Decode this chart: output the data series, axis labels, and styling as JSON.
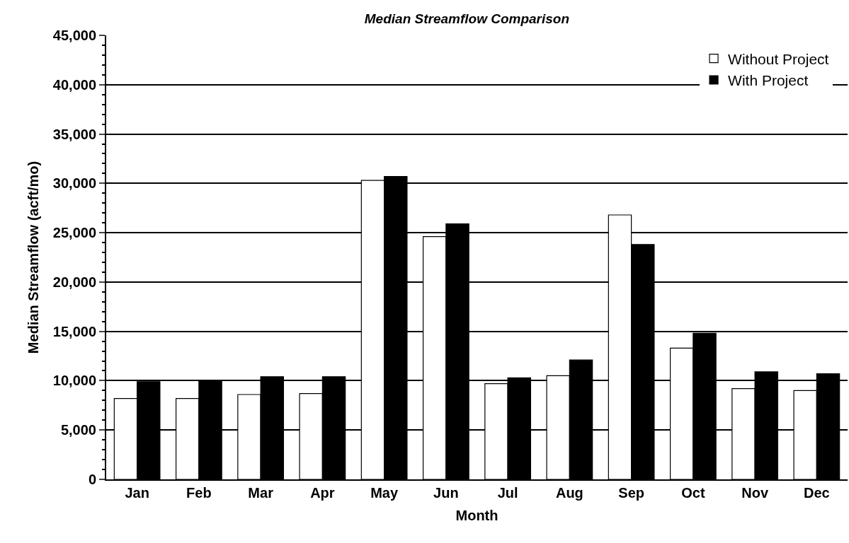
{
  "chart_data": {
    "type": "bar",
    "title": "Median Streamflow Comparison",
    "xlabel": "Month",
    "ylabel": "Median Streamflow (acft/mo)",
    "categories": [
      "Jan",
      "Feb",
      "Mar",
      "Apr",
      "May",
      "Jun",
      "Jul",
      "Aug",
      "Sep",
      "Oct",
      "Nov",
      "Dec"
    ],
    "series": [
      {
        "name": "Without Project",
        "color": "#ffffff",
        "values": [
          8200,
          8200,
          8600,
          8700,
          30300,
          24600,
          9700,
          10500,
          26800,
          13300,
          9200,
          9000
        ]
      },
      {
        "name": "With Project",
        "color": "#000000",
        "values": [
          9900,
          10000,
          10400,
          10400,
          30700,
          25900,
          10300,
          12100,
          23800,
          14800,
          10900,
          10700
        ]
      }
    ],
    "ylim": [
      0,
      45000
    ],
    "yticks": [
      {
        "value": 0,
        "label": "0"
      },
      {
        "value": 5000,
        "label": "5,000"
      },
      {
        "value": 10000,
        "label": "10,000"
      },
      {
        "value": 15000,
        "label": "15,000"
      },
      {
        "value": 20000,
        "label": "20,000"
      },
      {
        "value": 25000,
        "label": "25,000"
      },
      {
        "value": 30000,
        "label": "30,000"
      },
      {
        "value": 35000,
        "label": "35,000"
      },
      {
        "value": 40000,
        "label": "40,000"
      },
      {
        "value": 45000,
        "label": "45,000"
      }
    ],
    "grid": "y",
    "legend": "top right"
  }
}
